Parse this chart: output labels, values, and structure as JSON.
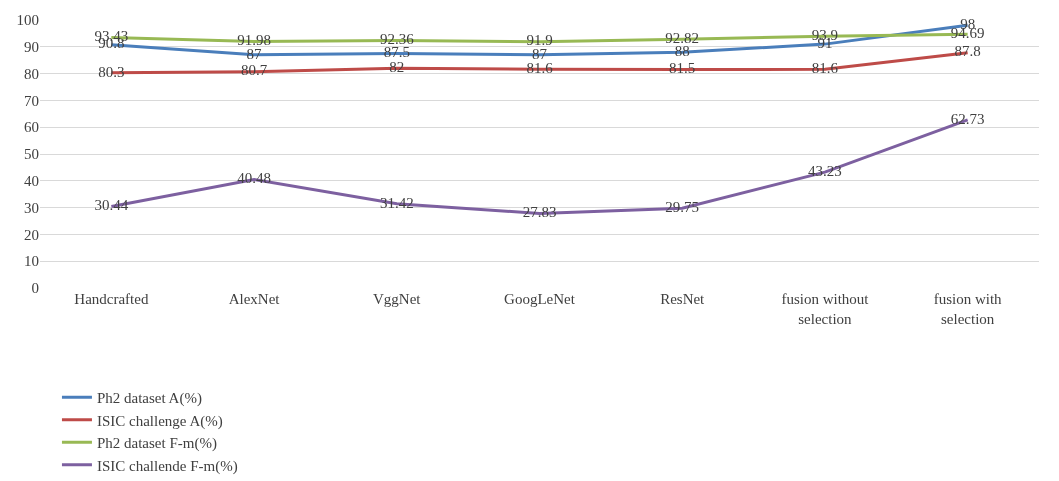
{
  "chart_data": {
    "type": "line",
    "categories": [
      "Handcrafted",
      "AlexNet",
      "VggNet",
      "GoogLeNet",
      "ResNet",
      "fusion without selection",
      "fusion with selection"
    ],
    "series": [
      {
        "name": "Ph2 dataset A(%)",
        "color": "#4a7ebb",
        "values": [
          90.8,
          87,
          87.5,
          87,
          88,
          91,
          98
        ]
      },
      {
        "name": "ISIC challenge A(%)",
        "color": "#be4b48",
        "values": [
          80.3,
          80.7,
          82,
          81.6,
          81.5,
          81.6,
          87.8
        ]
      },
      {
        "name": "Ph2 dataset F-m(%)",
        "color": "#98b954",
        "values": [
          93.43,
          91.98,
          92.36,
          91.9,
          92.82,
          93.9,
          94.69
        ]
      },
      {
        "name": "ISIC challende F-m(%)",
        "color": "#7d60a0",
        "values": [
          30.44,
          40.48,
          31.42,
          27.83,
          29.75,
          43.23,
          62.73
        ]
      }
    ],
    "ylim": [
      0,
      100
    ],
    "yticks": [
      0,
      10,
      20,
      30,
      40,
      50,
      60,
      70,
      80,
      90,
      100
    ],
    "grid": "y",
    "legend": "bottom",
    "data_labels": true,
    "marker": "none",
    "line_style": "solid"
  }
}
